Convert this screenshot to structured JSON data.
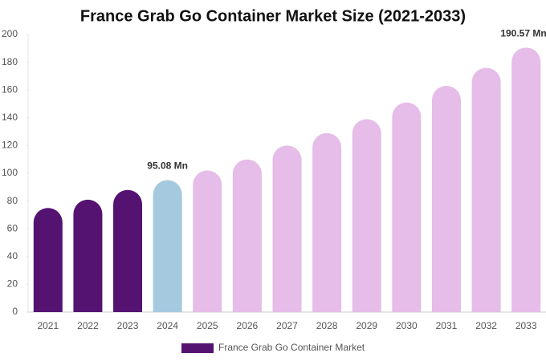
{
  "chart_data": {
    "type": "bar",
    "title": "France Grab Go Container Market Size (2021-2033)",
    "categories": [
      "2021",
      "2022",
      "2023",
      "2024",
      "2025",
      "2026",
      "2027",
      "2028",
      "2029",
      "2030",
      "2031",
      "2032",
      "2033"
    ],
    "series": [
      {
        "name": "France Grab Go Container Market",
        "color": "#541271",
        "values": [
          75,
          81,
          88,
          95.08,
          102,
          110,
          120,
          129,
          139,
          151,
          163,
          176,
          190.57
        ],
        "colors": [
          "#541271",
          "#541271",
          "#541271",
          "#a5cadf",
          "#e6bce8",
          "#e6bce8",
          "#e6bce8",
          "#e6bce8",
          "#e6bce8",
          "#e6bce8",
          "#e6bce8",
          "#e6bce8",
          "#e6bce8"
        ],
        "value_labels": [
          null,
          null,
          null,
          "95.08 Mn",
          null,
          null,
          null,
          null,
          null,
          null,
          null,
          null,
          "190.57 Mn"
        ]
      }
    ],
    "ylim": [
      0,
      200
    ],
    "yticks": [
      0,
      20,
      40,
      60,
      80,
      100,
      120,
      140,
      160,
      180,
      200
    ],
    "legend": "bottom"
  }
}
